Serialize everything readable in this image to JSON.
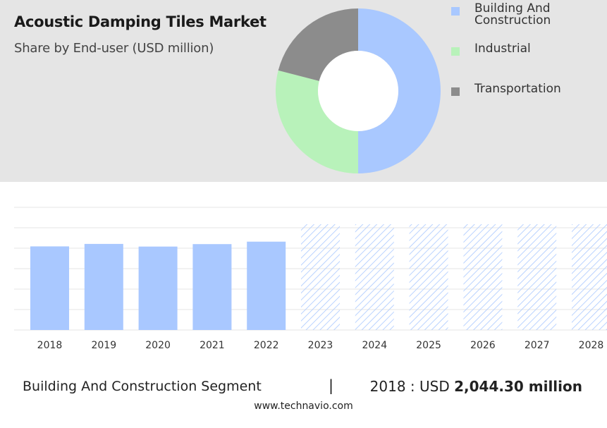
{
  "header": {
    "title": "Acoustic Damping Tiles Market",
    "subtitle": "Share by End-user (USD million)"
  },
  "chart_data": [
    {
      "type": "pie",
      "donut": true,
      "title": "Acoustic Damping Tiles Market",
      "subtitle": "Share by End-user (USD million)",
      "legend_position": "right",
      "slices": [
        {
          "name": "Building And Construction",
          "value": 50,
          "color": "#a9c8ff"
        },
        {
          "name": "Industrial",
          "value": 29,
          "color": "#b8f2ba"
        },
        {
          "name": "Transportation",
          "value": 21,
          "color": "#8c8c8c"
        }
      ]
    },
    {
      "type": "bar",
      "categories": [
        "2018",
        "2019",
        "2020",
        "2021",
        "2022",
        "2023",
        "2024",
        "2025",
        "2026",
        "2027",
        "2028"
      ],
      "values": [
        2044.3,
        2105,
        2040,
        2100,
        2160,
        null,
        null,
        null,
        null,
        null,
        null
      ],
      "forecast_categories": [
        "2023",
        "2024",
        "2025",
        "2026",
        "2027",
        "2028"
      ],
      "ylim": [
        0,
        3000
      ],
      "grid": true,
      "bar_color": "#a9c8ff",
      "forecast_hatch_color": "#a9c8ff"
    }
  ],
  "footer": {
    "segment": "Building And Construction Segment",
    "separator": "|",
    "value_prefix": "2018 : USD",
    "value_bold": "2,044.30 million",
    "website": "www.technavio.com"
  }
}
